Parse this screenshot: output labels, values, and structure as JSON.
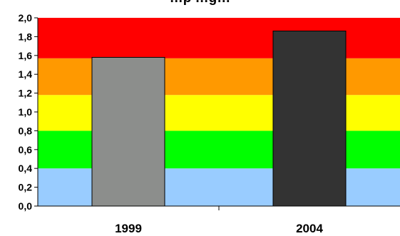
{
  "chart_data": {
    "type": "bar",
    "title": "…p …g…",
    "categories": [
      "1999",
      "2004"
    ],
    "values": [
      1.58,
      1.86
    ],
    "bar_colors": [
      "#8c8e8c",
      "#333333"
    ],
    "ylim": [
      0,
      2
    ],
    "yticks": [
      "0,0",
      "0,2",
      "0,4",
      "0,6",
      "0,8",
      "1,0",
      "1,2",
      "1,4",
      "1,6",
      "1,8",
      "2,0"
    ],
    "bands": [
      {
        "from": 0.0,
        "to": 0.4,
        "color": "#99ccff"
      },
      {
        "from": 0.4,
        "to": 0.8,
        "color": "#00ff00"
      },
      {
        "from": 0.8,
        "to": 1.18,
        "color": "#ffff00"
      },
      {
        "from": 1.18,
        "to": 1.57,
        "color": "#ff9900"
      },
      {
        "from": 1.57,
        "to": 2.0,
        "color": "#ff0000"
      }
    ],
    "grid": false,
    "legend": "none"
  }
}
